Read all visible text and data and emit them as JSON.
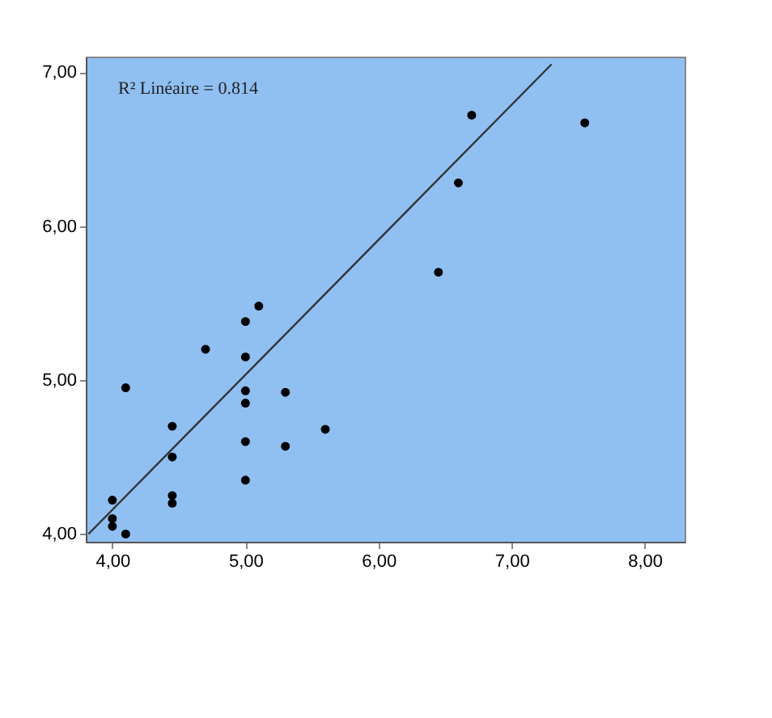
{
  "chart_data": {
    "type": "scatter",
    "annotations": [
      "R² Linéaire = 0.814"
    ],
    "xlim": [
      3.8,
      8.3
    ],
    "ylim": [
      3.95,
      7.1
    ],
    "xticks": [
      {
        "value": 4,
        "label": "4,00"
      },
      {
        "value": 5,
        "label": "5,00"
      },
      {
        "value": 6,
        "label": "6,00"
      },
      {
        "value": 7,
        "label": "7,00"
      },
      {
        "value": 8,
        "label": "8,00"
      }
    ],
    "yticks": [
      {
        "value": 4,
        "label": "4,00"
      },
      {
        "value": 5,
        "label": "5,00"
      },
      {
        "value": 6,
        "label": "6,00"
      },
      {
        "value": 7,
        "label": "7,00"
      }
    ],
    "grid": false,
    "marker": "circle",
    "series": [
      {
        "color": "#000000",
        "x": [
          4.0,
          4.0,
          4.0,
          4.1,
          4.1,
          4.45,
          4.45,
          4.45,
          4.45,
          4.7,
          5.0,
          5.0,
          5.0,
          5.0,
          5.0,
          5.0,
          5.1,
          5.3,
          5.3,
          5.6,
          6.45,
          6.6,
          6.7,
          7.55
        ],
        "values": [
          4.22,
          4.1,
          4.05,
          4.0,
          4.95,
          4.7,
          4.5,
          4.25,
          4.2,
          5.2,
          5.38,
          5.15,
          4.93,
          4.85,
          4.6,
          4.35,
          5.48,
          4.92,
          4.57,
          4.68,
          5.7,
          6.28,
          6.72,
          6.67
        ]
      },
      {
        "type": "line",
        "color": "#333333",
        "marker": "none",
        "x": [
          3.82,
          7.3
        ],
        "values": [
          4.0,
          7.05
        ]
      }
    ]
  }
}
